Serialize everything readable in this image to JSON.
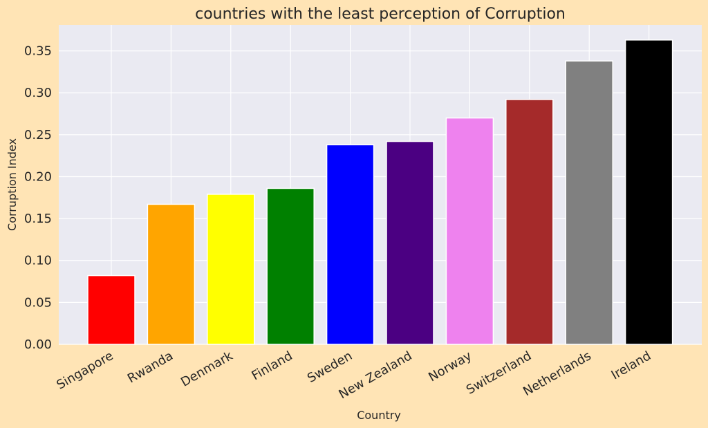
{
  "chart_data": {
    "type": "bar",
    "title": "countries with the least perception of Corruption",
    "xlabel": "Country",
    "ylabel": "Corruption Index",
    "categories": [
      "Singapore",
      "Rwanda",
      "Denmark",
      "Finland",
      "Sweden",
      "New Zealand",
      "Norway",
      "Switzerland",
      "Netherlands",
      "Ireland"
    ],
    "values": [
      0.082,
      0.167,
      0.179,
      0.186,
      0.238,
      0.242,
      0.27,
      0.292,
      0.338,
      0.363
    ],
    "colors": [
      "#ff0000",
      "#ffa500",
      "#ffff00",
      "#008000",
      "#0000ff",
      "#4b0082",
      "#ee82ee",
      "#a52a2a",
      "#808080",
      "#000000"
    ],
    "yticks": [
      "0.00",
      "0.05",
      "0.10",
      "0.15",
      "0.20",
      "0.25",
      "0.30",
      "0.35"
    ],
    "ylim": [
      0,
      0.381
    ],
    "grid": true,
    "background_color": "#ffe4b5",
    "plot_background_color": "#eaeaf2"
  }
}
